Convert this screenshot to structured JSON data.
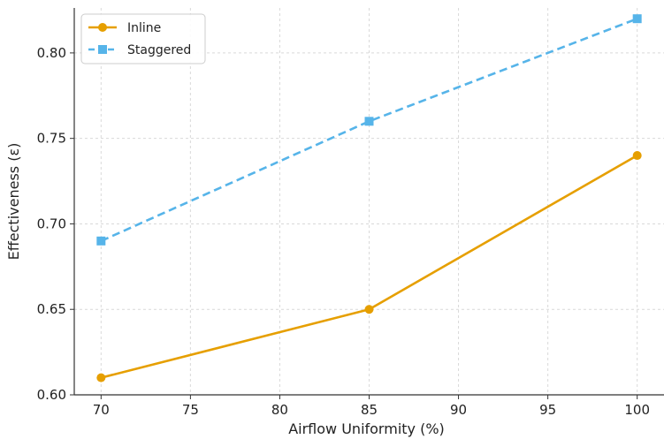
{
  "chart_data": {
    "type": "line",
    "x": [
      70,
      85,
      100
    ],
    "series": [
      {
        "name": "Inline",
        "values": [
          0.61,
          0.65,
          0.74
        ],
        "color": "#E69F00",
        "marker": "circle",
        "line_style": "solid"
      },
      {
        "name": "Staggered",
        "values": [
          0.69,
          0.76,
          0.82
        ],
        "color": "#56B4E9",
        "marker": "square",
        "line_style": "dashed"
      }
    ],
    "xlabel": "Airflow Uniformity (%)",
    "ylabel": "Effectiveness (ε)",
    "xlim": [
      68.5,
      101.5
    ],
    "ylim": [
      0.6,
      0.8263
    ],
    "xticks": [
      70,
      75,
      80,
      85,
      90,
      95,
      100
    ],
    "xtick_labels": [
      "70",
      "75",
      "80",
      "85",
      "90",
      "95",
      "100"
    ],
    "yticks": [
      0.6,
      0.65,
      0.7,
      0.75,
      0.8
    ],
    "ytick_labels": [
      "0.60",
      "0.65",
      "0.70",
      "0.75",
      "0.80"
    ],
    "grid": true,
    "legend_position": "top-left"
  }
}
